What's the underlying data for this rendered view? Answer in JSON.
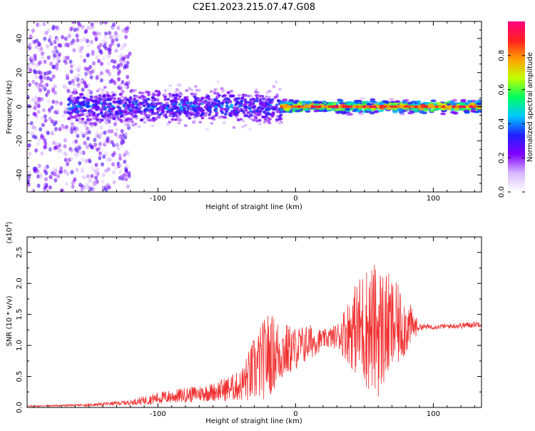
{
  "title": "C2E1.2023.215.07.47.G08",
  "chart_data": [
    {
      "type": "heatmap",
      "title": "",
      "xlabel": "Height of straight line (km)",
      "ylabel": "Frequency (Hz)",
      "xlim": [
        -195,
        135
      ],
      "ylim": [
        -50,
        50
      ],
      "xticks": [
        -100,
        0,
        100
      ],
      "yticks": [
        -40,
        -20,
        0,
        20,
        40
      ],
      "grid": false,
      "colorbar": {
        "label": "Normalized spectral amplitude",
        "range": [
          0,
          1
        ],
        "ticks": [
          "0.0",
          "0.2",
          "0.4",
          "0.6",
          "0.8"
        ],
        "colors": [
          "#ffffff",
          "#d8b8ff",
          "#8000ff",
          "#2020ff",
          "#00c8ff",
          "#00ff60",
          "#c0ff00",
          "#ffa000",
          "#ff2020",
          "#ff0080"
        ]
      },
      "description_series": [
        {
          "x_range": [
            -195,
            -120
          ],
          "freq_spread_hz": 50,
          "max_amplitude": 0.25
        },
        {
          "x_range": [
            -165,
            -10
          ],
          "freq_spread_hz": 18,
          "max_amplitude": 0.45
        },
        {
          "x_range": [
            -10,
            135
          ],
          "freq_spread_hz": 6,
          "max_amplitude": 1.0
        }
      ]
    },
    {
      "type": "line",
      "title": "",
      "xlabel": "Height of straight line (km)",
      "ylabel": "SNR (10 * v/v)",
      "yscale_label": "(x10",
      "yscale_exp": "4",
      "yscale_close": ")",
      "xlim": [
        -195,
        135
      ],
      "ylim": [
        0,
        2.75
      ],
      "xticks": [
        -100,
        0,
        100
      ],
      "yticks": [
        "0.0",
        "0.5",
        "1.0",
        "1.5",
        "2.0",
        "2.5"
      ],
      "color": "#f03030",
      "grid": false,
      "series": [
        {
          "x": [
            -195,
            -150,
            -120,
            -100,
            -80,
            -60,
            -40,
            -30,
            -20,
            -10,
            0,
            10,
            20,
            30,
            40,
            50,
            60,
            70,
            80,
            90,
            100,
            110,
            120,
            135
          ],
          "y": [
            0.02,
            0.04,
            0.08,
            0.15,
            0.2,
            0.25,
            0.35,
            0.6,
            0.85,
            0.9,
            0.95,
            1.05,
            1.1,
            1.15,
            1.25,
            1.3,
            1.25,
            1.3,
            1.32,
            1.3,
            1.3,
            1.31,
            1.32,
            1.35
          ],
          "amp": [
            0.01,
            0.02,
            0.04,
            0.1,
            0.12,
            0.15,
            0.25,
            0.55,
            0.7,
            0.5,
            0.35,
            0.3,
            0.15,
            0.2,
            0.6,
            1.0,
            1.1,
            0.8,
            0.5,
            0.05,
            0.04,
            0.04,
            0.05,
            0.05
          ]
        }
      ]
    }
  ]
}
